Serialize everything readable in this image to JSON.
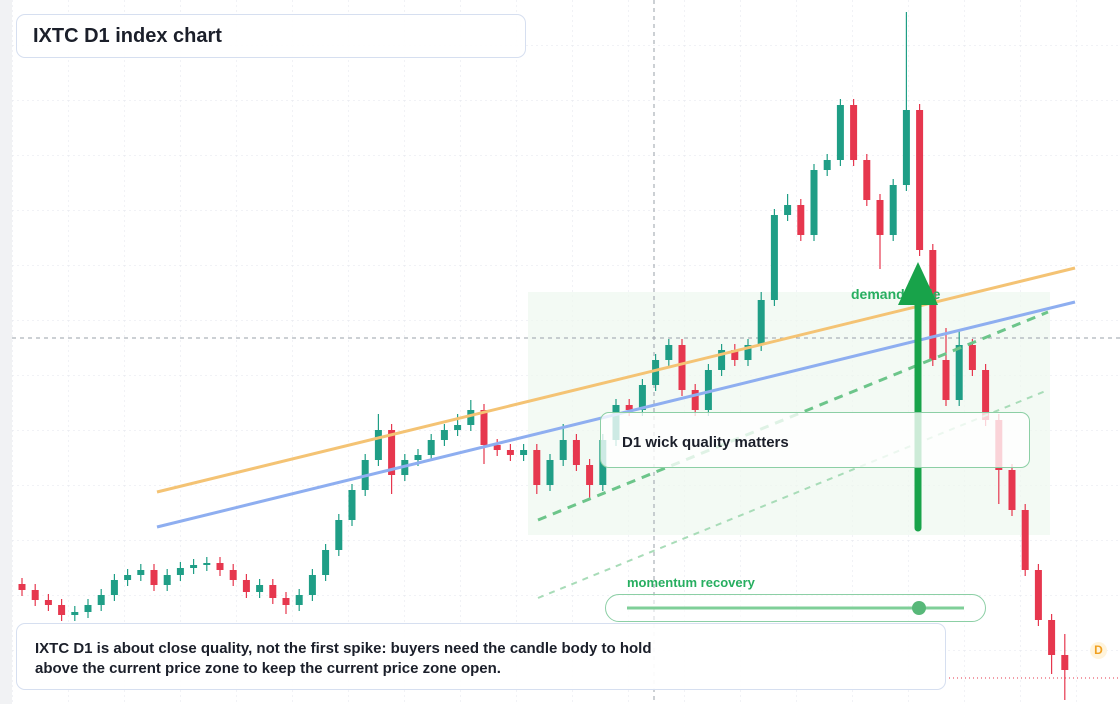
{
  "chart_data": {
    "type": "candlestick",
    "title": "IXTC D1 index chart",
    "annotations": [
      "demand slide",
      "D1 wick quality matters",
      "momentum recovery"
    ],
    "note": "IXTC D1 is about close quality, not the first spike: buyers need the candle body to hold above the current price zone to keep the current price zone open.",
    "badge": "D",
    "up_color": "#1f9e86",
    "down_color": "#e6374e",
    "ylim": [
      0,
      704
    ],
    "candles": [
      [
        120,
        126,
        108,
        114
      ],
      [
        114,
        120,
        98,
        104
      ],
      [
        104,
        110,
        93,
        99
      ],
      [
        99,
        105,
        83,
        89
      ],
      [
        89,
        98,
        83,
        92
      ],
      [
        92,
        105,
        86,
        99
      ],
      [
        99,
        115,
        93,
        109
      ],
      [
        109,
        130,
        103,
        124
      ],
      [
        124,
        135,
        118,
        129
      ],
      [
        129,
        140,
        123,
        134
      ],
      [
        134,
        140,
        113,
        119
      ],
      [
        119,
        135,
        113,
        129
      ],
      [
        129,
        142,
        123,
        136
      ],
      [
        136,
        145,
        130,
        139
      ],
      [
        139,
        147,
        133,
        141
      ],
      [
        141,
        147,
        128,
        134
      ],
      [
        134,
        140,
        118,
        124
      ],
      [
        124,
        130,
        106,
        112
      ],
      [
        112,
        125,
        106,
        119
      ],
      [
        119,
        125,
        100,
        106
      ],
      [
        106,
        112,
        90,
        99
      ],
      [
        99,
        115,
        93,
        109
      ],
      [
        109,
        135,
        103,
        129
      ],
      [
        129,
        160,
        123,
        154
      ],
      [
        154,
        190,
        148,
        184
      ],
      [
        184,
        220,
        178,
        214
      ],
      [
        214,
        250,
        208,
        244
      ],
      [
        244,
        290,
        238,
        274
      ],
      [
        274,
        280,
        210,
        229
      ],
      [
        229,
        250,
        223,
        244
      ],
      [
        244,
        255,
        238,
        249
      ],
      [
        249,
        270,
        243,
        264
      ],
      [
        264,
        280,
        258,
        274
      ],
      [
        274,
        290,
        268,
        279
      ],
      [
        279,
        304,
        273,
        294
      ],
      [
        294,
        300,
        240,
        259
      ],
      [
        259,
        265,
        248,
        254
      ],
      [
        254,
        260,
        243,
        249
      ],
      [
        249,
        260,
        243,
        254
      ],
      [
        254,
        260,
        210,
        219
      ],
      [
        219,
        250,
        213,
        244
      ],
      [
        244,
        280,
        238,
        264
      ],
      [
        264,
        270,
        233,
        239
      ],
      [
        239,
        245,
        205,
        219
      ],
      [
        219,
        270,
        213,
        264
      ],
      [
        264,
        305,
        258,
        299
      ],
      [
        299,
        305,
        288,
        294
      ],
      [
        294,
        325,
        288,
        319
      ],
      [
        319,
        350,
        313,
        344
      ],
      [
        344,
        365,
        338,
        359
      ],
      [
        359,
        365,
        308,
        314
      ],
      [
        314,
        320,
        288,
        294
      ],
      [
        294,
        340,
        288,
        334
      ],
      [
        334,
        360,
        328,
        354
      ],
      [
        354,
        360,
        338,
        344
      ],
      [
        344,
        365,
        338,
        359
      ],
      [
        359,
        412,
        353,
        404
      ],
      [
        404,
        495,
        398,
        489
      ],
      [
        489,
        510,
        483,
        499
      ],
      [
        499,
        505,
        463,
        469
      ],
      [
        469,
        540,
        463,
        534
      ],
      [
        534,
        550,
        528,
        544
      ],
      [
        544,
        605,
        538,
        599
      ],
      [
        599,
        605,
        538,
        544
      ],
      [
        544,
        550,
        498,
        504
      ],
      [
        504,
        510,
        435,
        469
      ],
      [
        469,
        525,
        463,
        519
      ],
      [
        519,
        692,
        513,
        594
      ],
      [
        594,
        600,
        448,
        454
      ],
      [
        454,
        460,
        338,
        344
      ],
      [
        344,
        376,
        298,
        304
      ],
      [
        304,
        375,
        298,
        359
      ],
      [
        359,
        365,
        328,
        334
      ],
      [
        334,
        340,
        278,
        284
      ],
      [
        284,
        290,
        200,
        234
      ],
      [
        234,
        240,
        188,
        194
      ],
      [
        194,
        200,
        128,
        134
      ],
      [
        134,
        140,
        78,
        84
      ],
      [
        84,
        90,
        30,
        49
      ],
      [
        49,
        70,
        4,
        34
      ]
    ]
  }
}
